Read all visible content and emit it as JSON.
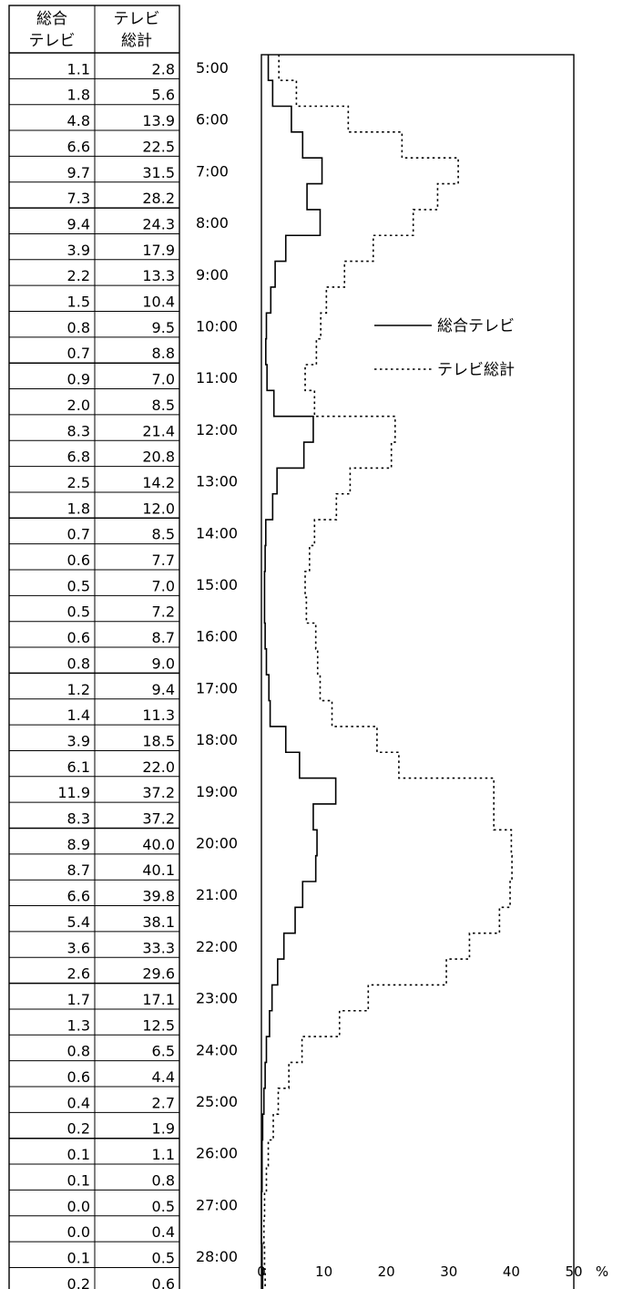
{
  "table": {
    "headers": [
      [
        "総合",
        "テレビ"
      ],
      [
        "テレビ",
        "総計"
      ]
    ]
  },
  "chart_data": {
    "type": "line",
    "orientation": "horizontal",
    "step": true,
    "times": [
      "5:00",
      "6:00",
      "7:00",
      "8:00",
      "9:00",
      "10:00",
      "11:00",
      "12:00",
      "13:00",
      "14:00",
      "15:00",
      "16:00",
      "17:00",
      "18:00",
      "19:00",
      "20:00",
      "21:00",
      "22:00",
      "23:00",
      "24:00",
      "25:00",
      "26:00",
      "27:00",
      "28:00"
    ],
    "xticks": [
      "0",
      "10",
      "20",
      "30",
      "40",
      "50"
    ],
    "xlim": [
      0,
      50
    ],
    "xunit": "%",
    "series": [
      {
        "name": "総合テレビ",
        "style": "solid",
        "values": [
          "1.1",
          "1.8",
          "4.8",
          "6.6",
          "9.7",
          "7.3",
          "9.4",
          "3.9",
          "2.2",
          "1.5",
          "0.8",
          "0.7",
          "0.9",
          "2.0",
          "8.3",
          "6.8",
          "2.5",
          "1.8",
          "0.7",
          "0.6",
          "0.5",
          "0.5",
          "0.6",
          "0.8",
          "1.2",
          "1.4",
          "3.9",
          "6.1",
          "11.9",
          "8.3",
          "8.9",
          "8.7",
          "6.6",
          "5.4",
          "3.6",
          "2.6",
          "1.7",
          "1.3",
          "0.8",
          "0.6",
          "0.4",
          "0.2",
          "0.1",
          "0.1",
          "0.0",
          "0.0",
          "0.1",
          "0.2"
        ]
      },
      {
        "name": "テレビ総計",
        "style": "dotted",
        "values": [
          "2.8",
          "5.6",
          "13.9",
          "22.5",
          "31.5",
          "28.2",
          "24.3",
          "17.9",
          "13.3",
          "10.4",
          "9.5",
          "8.8",
          "7.0",
          "8.5",
          "21.4",
          "20.8",
          "14.2",
          "12.0",
          "8.5",
          "7.7",
          "7.0",
          "7.2",
          "8.7",
          "9.0",
          "9.4",
          "11.3",
          "18.5",
          "22.0",
          "37.2",
          "37.2",
          "40.0",
          "40.1",
          "39.8",
          "38.1",
          "33.3",
          "29.6",
          "17.1",
          "12.5",
          "6.5",
          "4.4",
          "2.7",
          "1.9",
          "1.1",
          "0.8",
          "0.5",
          "0.4",
          "0.5",
          "0.6"
        ]
      }
    ],
    "legend_position": "right",
    "grid": false
  }
}
